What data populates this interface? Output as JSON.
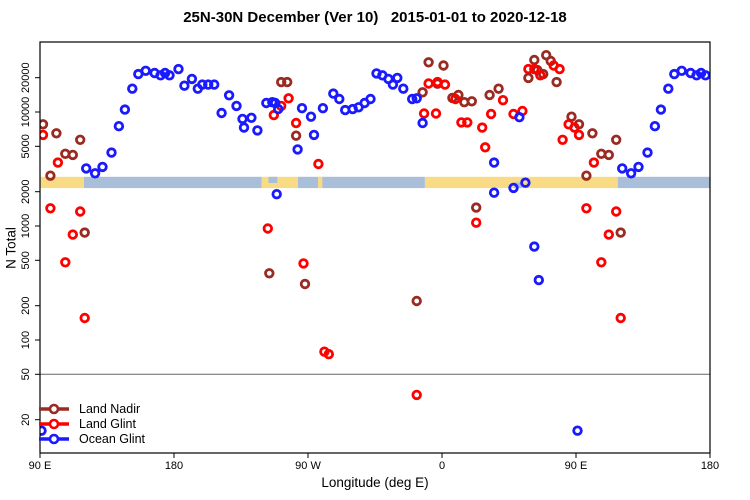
{
  "title": "25N-30N December (Ver 10)   2015-01-01 to 2020-12-18",
  "colors": {
    "land_nadir": "#992B22",
    "land_glint": "#FF0000",
    "ocean_glint": "#1A1AFF",
    "band_land": "#FADB85",
    "band_ocean": "#A9BED9",
    "reference_line": "#666666",
    "axis": "#000000"
  },
  "legend": {
    "items": [
      {
        "id": "land_nadir",
        "label": "Land Nadir"
      },
      {
        "id": "land_glint",
        "label": "Land Glint"
      },
      {
        "id": "ocean_glint",
        "label": "Ocean Glint"
      }
    ]
  },
  "chart_data": {
    "type": "scatter",
    "title": "25N-30N December (Ver 10)   2015-01-01 to 2020-12-18",
    "xlabel": "Longitude (deg E)",
    "ylabel": "N Total",
    "x_axis": {
      "range": [
        90,
        540
      ],
      "wrap_note": "axis spans 450 deg of longitude; points with lon <= 180 are plotted again at lon+360",
      "ticks": [
        {
          "pos": 90,
          "label": "90 E"
        },
        {
          "pos": 180,
          "label": "180"
        },
        {
          "pos": 270,
          "label": "90 W"
        },
        {
          "pos": 360,
          "label": "0"
        },
        {
          "pos": 450,
          "label": "90 E"
        },
        {
          "pos": 540,
          "label": "180"
        }
      ]
    },
    "y_axis": {
      "scale": "log",
      "range": [
        10,
        41000
      ],
      "ticks": [
        20000,
        10000,
        5000,
        2000,
        1000,
        500,
        200,
        100,
        50,
        20
      ]
    },
    "reference_line_y": 50,
    "map_band": {
      "top_value": 2700,
      "bottom_value": 2150,
      "segments": [
        {
          "type": "land",
          "from": 90,
          "to": 119.5
        },
        {
          "type": "ocean",
          "from": 119.5,
          "to": 239
        },
        {
          "type": "land",
          "from": 239,
          "to": 263.3
        },
        {
          "type": "ocean",
          "from": 263.3,
          "to": 348.5
        },
        {
          "type": "land",
          "from": 348.5,
          "to": 478
        },
        {
          "type": "ocean",
          "from": 478,
          "to": 540
        }
      ],
      "overlays": [
        {
          "name": "gulf-of-california",
          "type": "ocean",
          "from": 243.5,
          "to": 249.5,
          "height_frac": 0.55,
          "align": "top"
        },
        {
          "name": "florida",
          "type": "land",
          "from": 276.7,
          "to": 279.6,
          "height_frac": 1.0,
          "align": "top"
        },
        {
          "name": "persian-gulf",
          "type": "ocean",
          "from": 408.3,
          "to": 413.5,
          "height_frac": 0.5,
          "align": "bottom"
        }
      ]
    },
    "series": [
      {
        "id": "land_nadir",
        "name": "Land Nadir",
        "points": [
          [
            92,
            7800
          ],
          [
            97,
            2760
          ],
          [
            101,
            6500
          ],
          [
            107,
            4300
          ],
          [
            112,
            4200
          ],
          [
            117,
            5700
          ],
          [
            120,
            875
          ],
          [
            244,
            385
          ],
          [
            252,
            18300
          ],
          [
            256,
            18300
          ],
          [
            262,
            6200
          ],
          [
            268,
            310
          ],
          [
            343,
            220
          ],
          [
            347,
            14900
          ],
          [
            351,
            27300
          ],
          [
            357,
            17700
          ],
          [
            361,
            25600
          ],
          [
            367,
            13300
          ],
          [
            371,
            14100
          ],
          [
            375,
            12200
          ],
          [
            380,
            12400
          ],
          [
            383,
            1450
          ],
          [
            392,
            14100
          ],
          [
            398,
            16000
          ],
          [
            418,
            19900
          ],
          [
            422,
            28600
          ],
          [
            424,
            23300
          ],
          [
            428,
            21500
          ],
          [
            430,
            31500
          ],
          [
            433,
            28000
          ],
          [
            437,
            18300
          ],
          [
            447,
            9100
          ]
        ]
      },
      {
        "id": "land_glint",
        "name": "Land Glint",
        "points": [
          [
            92,
            6300
          ],
          [
            97,
            1430
          ],
          [
            102,
            3600
          ],
          [
            107,
            480
          ],
          [
            112,
            840
          ],
          [
            117,
            1340
          ],
          [
            120,
            156
          ],
          [
            243,
            950
          ],
          [
            247,
            9400
          ],
          [
            252,
            11300
          ],
          [
            257,
            13200
          ],
          [
            262,
            8000
          ],
          [
            267,
            470
          ],
          [
            277,
            3500
          ],
          [
            281,
            79
          ],
          [
            284,
            75
          ],
          [
            343,
            33
          ],
          [
            348,
            9700
          ],
          [
            351,
            17800
          ],
          [
            356,
            9700
          ],
          [
            357,
            18300
          ],
          [
            362,
            17400
          ],
          [
            369,
            13000
          ],
          [
            373,
            8100
          ],
          [
            377,
            8100
          ],
          [
            383,
            1070
          ],
          [
            387,
            7300
          ],
          [
            389,
            4900
          ],
          [
            393,
            9600
          ],
          [
            401,
            12700
          ],
          [
            408,
            9600
          ],
          [
            414,
            10200
          ],
          [
            418,
            23800
          ],
          [
            422,
            23800
          ],
          [
            426,
            21000
          ],
          [
            435,
            25600
          ],
          [
            439,
            23800
          ],
          [
            441,
            5700
          ],
          [
            445,
            7800
          ],
          [
            449,
            7300
          ]
        ]
      },
      {
        "id": "ocean_glint",
        "name": "Ocean Glint",
        "points": [
          [
            91,
            16
          ],
          [
            121,
            3200
          ],
          [
            127,
            2900
          ],
          [
            132,
            3300
          ],
          [
            138,
            4400
          ],
          [
            143,
            7500
          ],
          [
            147,
            10500
          ],
          [
            152,
            16000
          ],
          [
            156,
            21500
          ],
          [
            161,
            23000
          ],
          [
            167,
            22000
          ],
          [
            171,
            21000
          ],
          [
            174,
            22000
          ],
          [
            177,
            21000
          ],
          [
            183,
            23800
          ],
          [
            187,
            17000
          ],
          [
            192,
            19500
          ],
          [
            196,
            16000
          ],
          [
            199,
            17400
          ],
          [
            203,
            17400
          ],
          [
            207,
            17400
          ],
          [
            212,
            9800
          ],
          [
            217,
            14000
          ],
          [
            222,
            11300
          ],
          [
            226,
            8700
          ],
          [
            227,
            7300
          ],
          [
            232,
            8900
          ],
          [
            236,
            6900
          ],
          [
            242,
            12000
          ],
          [
            246,
            12200
          ],
          [
            248,
            12000
          ],
          [
            250,
            10600
          ],
          [
            249,
            1900
          ],
          [
            263,
            4700
          ],
          [
            266,
            10800
          ],
          [
            272,
            9100
          ],
          [
            274,
            6300
          ],
          [
            280,
            10800
          ],
          [
            287,
            14500
          ],
          [
            291,
            13000
          ],
          [
            295,
            10400
          ],
          [
            300,
            10600
          ],
          [
            304,
            11000
          ],
          [
            308,
            12000
          ],
          [
            312,
            13000
          ],
          [
            316,
            21800
          ],
          [
            320,
            21000
          ],
          [
            324,
            19500
          ],
          [
            327,
            17400
          ],
          [
            330,
            19900
          ],
          [
            334,
            16000
          ],
          [
            340,
            13000
          ],
          [
            343,
            13200
          ],
          [
            347,
            8000
          ],
          [
            395,
            3600
          ],
          [
            395,
            1960
          ],
          [
            408,
            2160
          ],
          [
            412,
            9000
          ],
          [
            416,
            2400
          ],
          [
            422,
            660
          ],
          [
            425,
            335
          ]
        ]
      }
    ]
  }
}
